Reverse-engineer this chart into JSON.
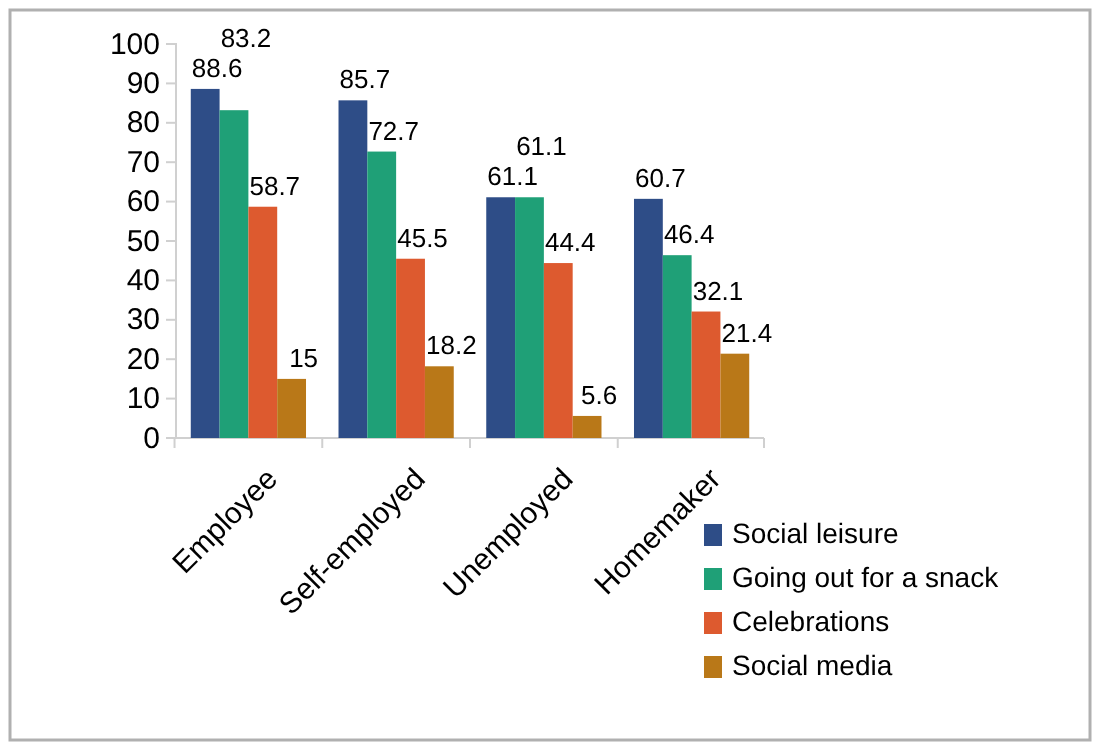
{
  "chart_data": {
    "type": "bar",
    "categories": [
      "Employee",
      "Self-employed",
      "Unemployed",
      "Homemaker"
    ],
    "series": [
      {
        "name": "Social leisure",
        "color": "#2e4d87",
        "values": [
          88.6,
          85.7,
          61.1,
          60.7
        ]
      },
      {
        "name": "Going out for a snack",
        "color": "#1fa077",
        "values": [
          83.2,
          72.7,
          61.1,
          46.4
        ]
      },
      {
        "name": "Celebrations",
        "color": "#dd5a2f",
        "values": [
          58.7,
          45.5,
          44.4,
          32.1
        ]
      },
      {
        "name": "Social media",
        "color": "#b97818",
        "values": [
          15,
          18.2,
          5.6,
          21.4
        ]
      }
    ],
    "ylim": [
      0,
      100
    ],
    "yticks": [
      0,
      10,
      20,
      30,
      40,
      50,
      60,
      70,
      80,
      90,
      100
    ],
    "data_labels": true,
    "legend": "bottom right",
    "grid": false
  }
}
